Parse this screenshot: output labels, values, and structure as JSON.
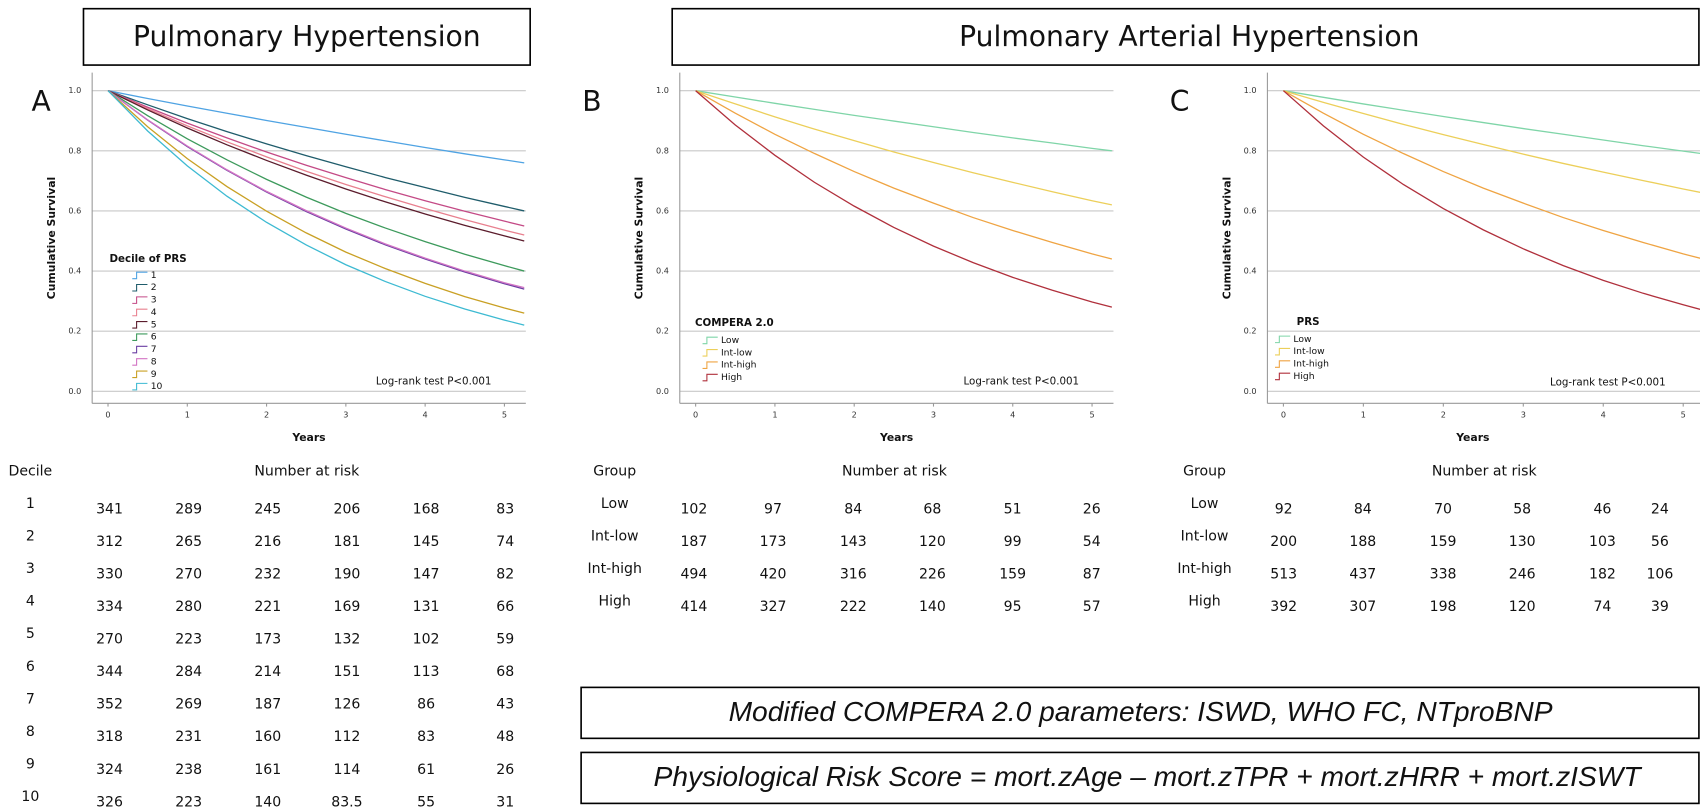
{
  "headers": [
    "Pulmonary Hypertension",
    "Pulmonary Arterial Hypertension"
  ],
  "chart_data": [
    {
      "type": "line",
      "panel": "A",
      "xlabel": "Years",
      "ylabel": "Cumulative Survival",
      "legend_title": "Decile of PRS",
      "annotation": "Log-rank test P<0.001",
      "grid": true,
      "xlim": [
        -0.2,
        5.27
      ],
      "ylim": [
        -0.04,
        1.06
      ],
      "xticks": [
        0,
        1,
        2,
        3,
        4,
        5
      ],
      "yticks": [
        {
          "value": 0,
          "label": "0.0"
        },
        0.2,
        0.4,
        0.6,
        0.8,
        {
          "value": 1,
          "label": "1.0"
        }
      ],
      "x": [
        0,
        0.5,
        1,
        1.5,
        2,
        2.5,
        3,
        3.5,
        4,
        4.5,
        5,
        5.25
      ],
      "series": [
        {
          "name": "1",
          "color": "#4fa3e3",
          "values": [
            1,
            0.974,
            0.949,
            0.925,
            0.901,
            0.878,
            0.855,
            0.833,
            0.811,
            0.79,
            0.77,
            0.76
          ]
        },
        {
          "name": "2",
          "color": "#1f5c6b",
          "values": [
            1,
            0.953,
            0.907,
            0.864,
            0.823,
            0.784,
            0.747,
            0.711,
            0.678,
            0.645,
            0.615,
            0.6
          ]
        },
        {
          "name": "3",
          "color": "#c44a86",
          "values": [
            1,
            0.945,
            0.892,
            0.843,
            0.796,
            0.752,
            0.711,
            0.671,
            0.634,
            0.599,
            0.566,
            0.55
          ]
        },
        {
          "name": "4",
          "color": "#e8808f",
          "values": [
            1,
            0.94,
            0.883,
            0.83,
            0.78,
            0.732,
            0.688,
            0.647,
            0.608,
            0.571,
            0.536,
            0.52
          ]
        },
        {
          "name": "5",
          "color": "#5b1c2c",
          "values": [
            1,
            0.936,
            0.876,
            0.82,
            0.768,
            0.719,
            0.673,
            0.63,
            0.59,
            0.552,
            0.517,
            0.5
          ]
        },
        {
          "name": "6",
          "color": "#3d9a5c",
          "values": [
            1,
            0.917,
            0.84,
            0.77,
            0.705,
            0.646,
            0.592,
            0.543,
            0.498,
            0.456,
            0.418,
            0.4
          ]
        },
        {
          "name": "7",
          "color": "#6b3fa3",
          "values": [
            1,
            0.902,
            0.814,
            0.735,
            0.663,
            0.598,
            0.54,
            0.487,
            0.44,
            0.397,
            0.358,
            0.34
          ]
        },
        {
          "name": "8",
          "color": "#d274c4",
          "values": [
            1,
            0.903,
            0.816,
            0.737,
            0.665,
            0.601,
            0.543,
            0.49,
            0.443,
            0.4,
            0.361,
            0.345
          ]
        },
        {
          "name": "9",
          "color": "#c9a024",
          "values": [
            1,
            0.88,
            0.774,
            0.681,
            0.599,
            0.527,
            0.463,
            0.408,
            0.359,
            0.315,
            0.277,
            0.26
          ]
        },
        {
          "name": "10",
          "color": "#3dbad2",
          "values": [
            1,
            0.866,
            0.75,
            0.649,
            0.562,
            0.487,
            0.421,
            0.365,
            0.316,
            0.274,
            0.237,
            0.22
          ]
        }
      ]
    },
    {
      "type": "line",
      "panel": "B",
      "xlabel": "Years",
      "ylabel": "Cumulative Survival",
      "legend_title": "COMPERA 2.0",
      "annotation": "Log-rank test P<0.001",
      "grid": true,
      "xlim": [
        -0.2,
        5.27
      ],
      "ylim": [
        -0.04,
        1.06
      ],
      "xticks": [
        0,
        1,
        2,
        3,
        4,
        5
      ],
      "yticks": [
        {
          "value": 0,
          "label": "0.0"
        },
        0.2,
        0.4,
        0.6,
        0.8,
        {
          "value": 1,
          "label": "1.0"
        }
      ],
      "x": [
        0,
        0.5,
        1,
        1.5,
        2,
        2.5,
        3,
        3.5,
        4,
        4.5,
        5,
        5.25
      ],
      "series": [
        {
          "name": "Low",
          "color": "#7fd5a8",
          "values": [
            1,
            0.979,
            0.958,
            0.938,
            0.918,
            0.899,
            0.88,
            0.861,
            0.843,
            0.826,
            0.808,
            0.8
          ]
        },
        {
          "name": "Int-low",
          "color": "#eccf5a",
          "values": [
            1,
            0.956,
            0.913,
            0.872,
            0.834,
            0.796,
            0.761,
            0.727,
            0.695,
            0.664,
            0.634,
            0.62
          ]
        },
        {
          "name": "Int-high",
          "color": "#efa443",
          "values": [
            1,
            0.925,
            0.855,
            0.791,
            0.731,
            0.676,
            0.626,
            0.578,
            0.535,
            0.495,
            0.457,
            0.44
          ]
        },
        {
          "name": "High",
          "color": "#b0303c",
          "values": [
            1,
            0.886,
            0.785,
            0.695,
            0.616,
            0.545,
            0.483,
            0.428,
            0.379,
            0.336,
            0.297,
            0.28
          ]
        }
      ]
    },
    {
      "type": "line",
      "panel": "C",
      "xlabel": "Years",
      "ylabel": "Cumulative Survival",
      "legend_title": "PRS",
      "annotation": "Log-rank test P<0.001",
      "grid": true,
      "xlim": [
        -0.2,
        5.21
      ],
      "ylim": [
        -0.04,
        1.06
      ],
      "xticks": [
        0,
        1,
        2,
        3,
        4,
        5
      ],
      "yticks": [
        {
          "value": 0,
          "label": "0.0"
        },
        0.2,
        0.4,
        0.6,
        0.8,
        {
          "value": 1,
          "label": "1.0"
        }
      ],
      "x": [
        0,
        0.5,
        1,
        1.5,
        2,
        2.5,
        3,
        3.5,
        4,
        4.5,
        5,
        5.25
      ],
      "series": [
        {
          "name": "Low",
          "color": "#7fd5a8",
          "values": [
            1,
            0.978,
            0.956,
            0.935,
            0.914,
            0.894,
            0.874,
            0.855,
            0.836,
            0.817,
            0.799,
            0.79
          ]
        },
        {
          "name": "Int-low",
          "color": "#eccf5a",
          "values": [
            1,
            0.961,
            0.924,
            0.888,
            0.854,
            0.821,
            0.789,
            0.758,
            0.729,
            0.701,
            0.673,
            0.66
          ]
        },
        {
          "name": "Int-high",
          "color": "#efa443",
          "values": [
            1,
            0.925,
            0.855,
            0.791,
            0.731,
            0.676,
            0.626,
            0.578,
            0.535,
            0.495,
            0.457,
            0.44
          ]
        },
        {
          "name": "High",
          "color": "#b0303c",
          "values": [
            1,
            0.883,
            0.779,
            0.688,
            0.608,
            0.537,
            0.474,
            0.418,
            0.369,
            0.326,
            0.288,
            0.27
          ]
        }
      ]
    }
  ],
  "risk_tables": [
    {
      "group_header": "Decile",
      "title": "Number at risk",
      "rows": [
        {
          "label": "1",
          "values": [
            341,
            289,
            245,
            206,
            168,
            83
          ]
        },
        {
          "label": "2",
          "values": [
            312,
            265,
            216,
            181,
            145,
            74
          ]
        },
        {
          "label": "3",
          "values": [
            330,
            270,
            232,
            190,
            147,
            82
          ]
        },
        {
          "label": "4",
          "values": [
            334,
            280,
            221,
            169,
            131,
            66
          ]
        },
        {
          "label": "5",
          "values": [
            270,
            223,
            173,
            132,
            102,
            59
          ]
        },
        {
          "label": "6",
          "values": [
            344,
            284,
            214,
            151,
            113,
            68
          ]
        },
        {
          "label": "7",
          "values": [
            352,
            269,
            187,
            126,
            86,
            43
          ]
        },
        {
          "label": "8",
          "values": [
            318,
            231,
            160,
            112,
            83,
            48
          ]
        },
        {
          "label": "9",
          "values": [
            324,
            238,
            161,
            114,
            61,
            26
          ]
        },
        {
          "label": "10",
          "values": [
            326,
            223,
            140,
            83.5,
            55,
            31
          ]
        }
      ]
    },
    {
      "group_header": "Group",
      "title": "Number at risk",
      "rows": [
        {
          "label": "Low",
          "values": [
            102,
            97,
            84,
            68,
            51,
            26
          ]
        },
        {
          "label": "Int-low",
          "values": [
            187,
            173,
            143,
            120,
            99,
            54
          ]
        },
        {
          "label": "Int-high",
          "values": [
            494,
            420,
            316,
            226,
            159,
            87
          ]
        },
        {
          "label": "High",
          "values": [
            414,
            327,
            222,
            140,
            95,
            57
          ]
        }
      ]
    },
    {
      "group_header": "Group",
      "title": "Number at risk",
      "rows": [
        {
          "label": "Low",
          "values": [
            92,
            84,
            70,
            58,
            46,
            24
          ]
        },
        {
          "label": "Int-low",
          "values": [
            200,
            188,
            159,
            130,
            103,
            56
          ]
        },
        {
          "label": "Int-high",
          "values": [
            513,
            437,
            338,
            246,
            182,
            106
          ]
        },
        {
          "label": "High",
          "values": [
            392,
            307,
            198,
            120,
            74,
            39
          ]
        }
      ]
    }
  ],
  "notes": [
    "Modified COMPERA 2.0 parameters: ISWD, WHO FC, NTproBNP",
    "Physiological Risk Score = mort.zAge – mort.zTPR + mort.zHRR + mort.zISWT"
  ]
}
